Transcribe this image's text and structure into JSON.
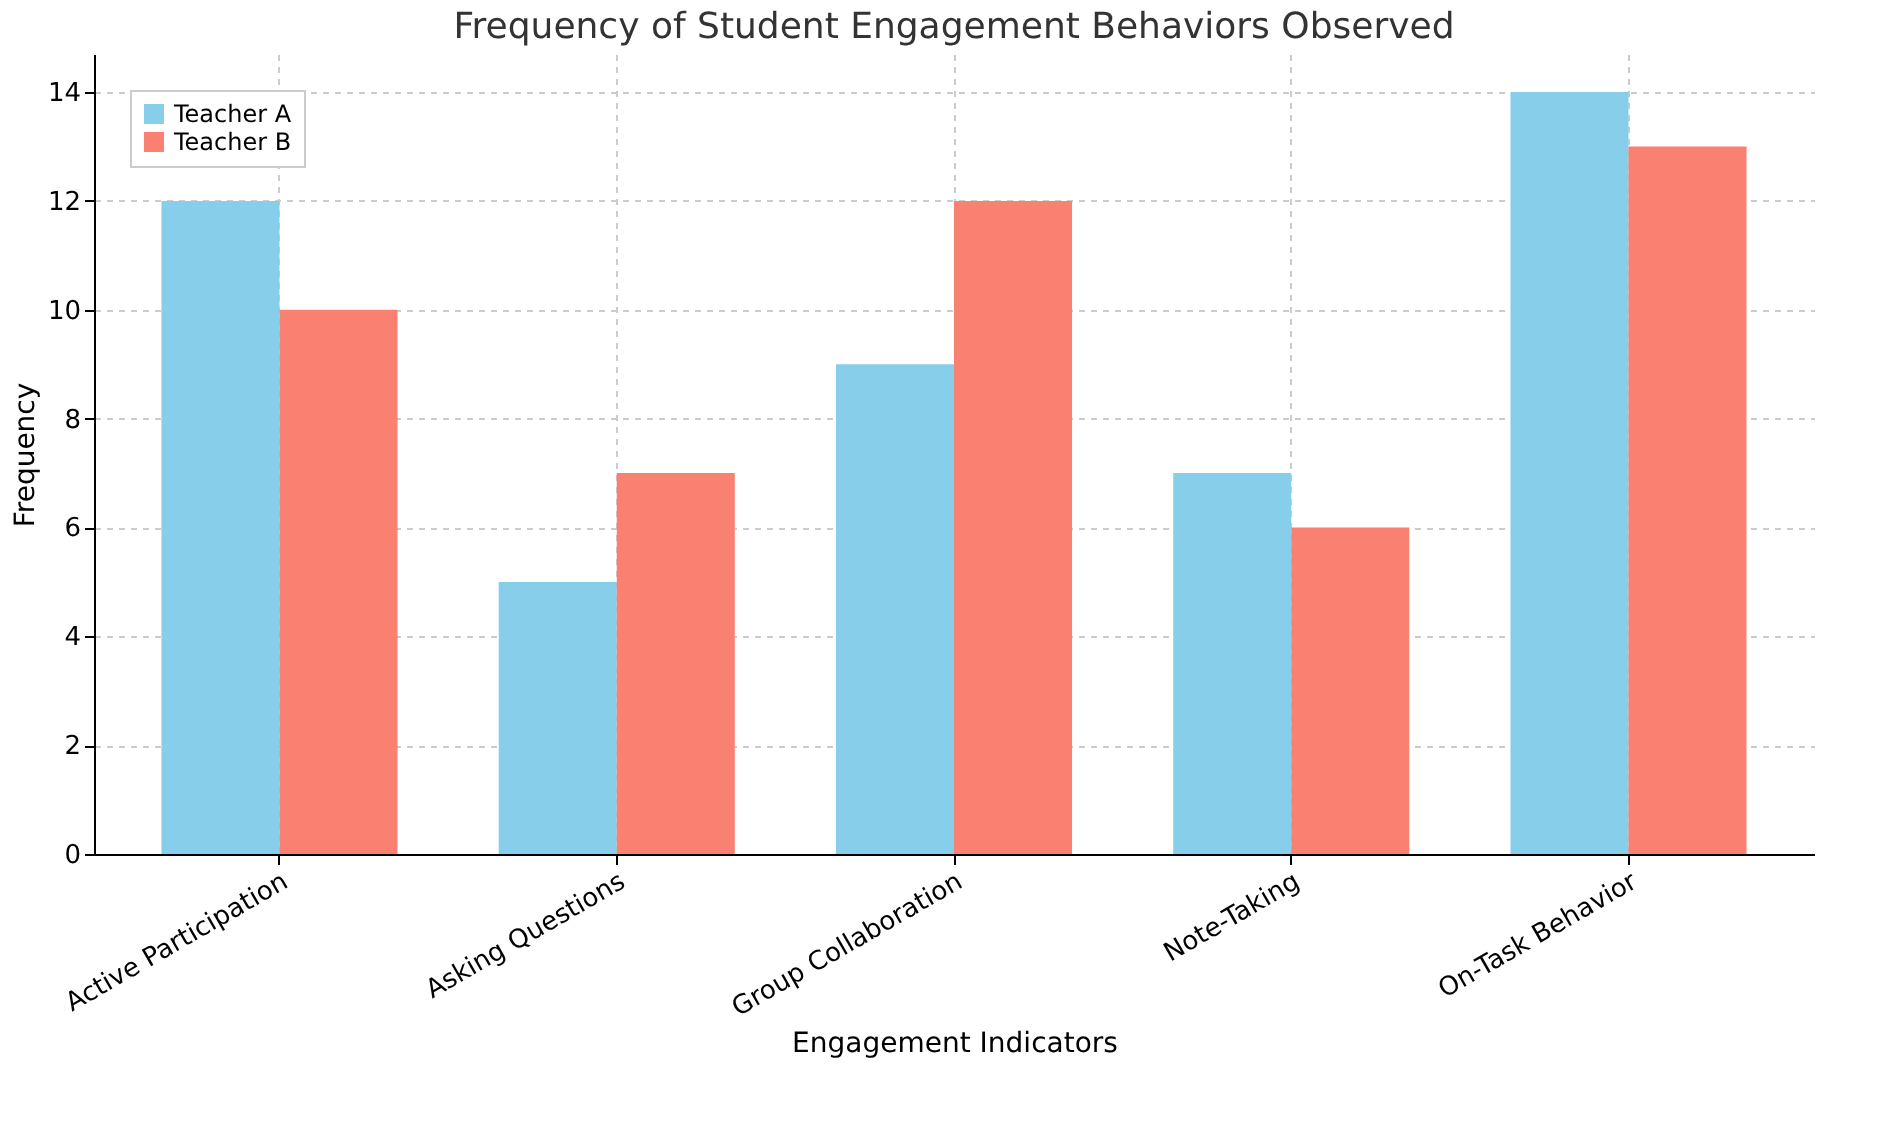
{
  "chart_data": {
    "type": "bar",
    "title": "Frequency of Student Engagement Behaviors Observed",
    "xlabel": "Engagement Indicators",
    "ylabel": "Frequency",
    "categories": [
      "Active Participation",
      "Asking Questions",
      "Group Collaboration",
      "Note-Taking",
      "On-Task Behavior"
    ],
    "series": [
      {
        "name": "Teacher A",
        "color": "#87ceeb",
        "values": [
          12,
          5,
          9,
          7,
          14
        ]
      },
      {
        "name": "Teacher B",
        "color": "#fa8072",
        "values": [
          10,
          7,
          12,
          6,
          13
        ]
      }
    ],
    "ylim": [
      0,
      14.7
    ],
    "yticks": [
      0,
      2,
      4,
      6,
      8,
      10,
      12,
      14
    ],
    "grid": true,
    "legend": "top left"
  }
}
